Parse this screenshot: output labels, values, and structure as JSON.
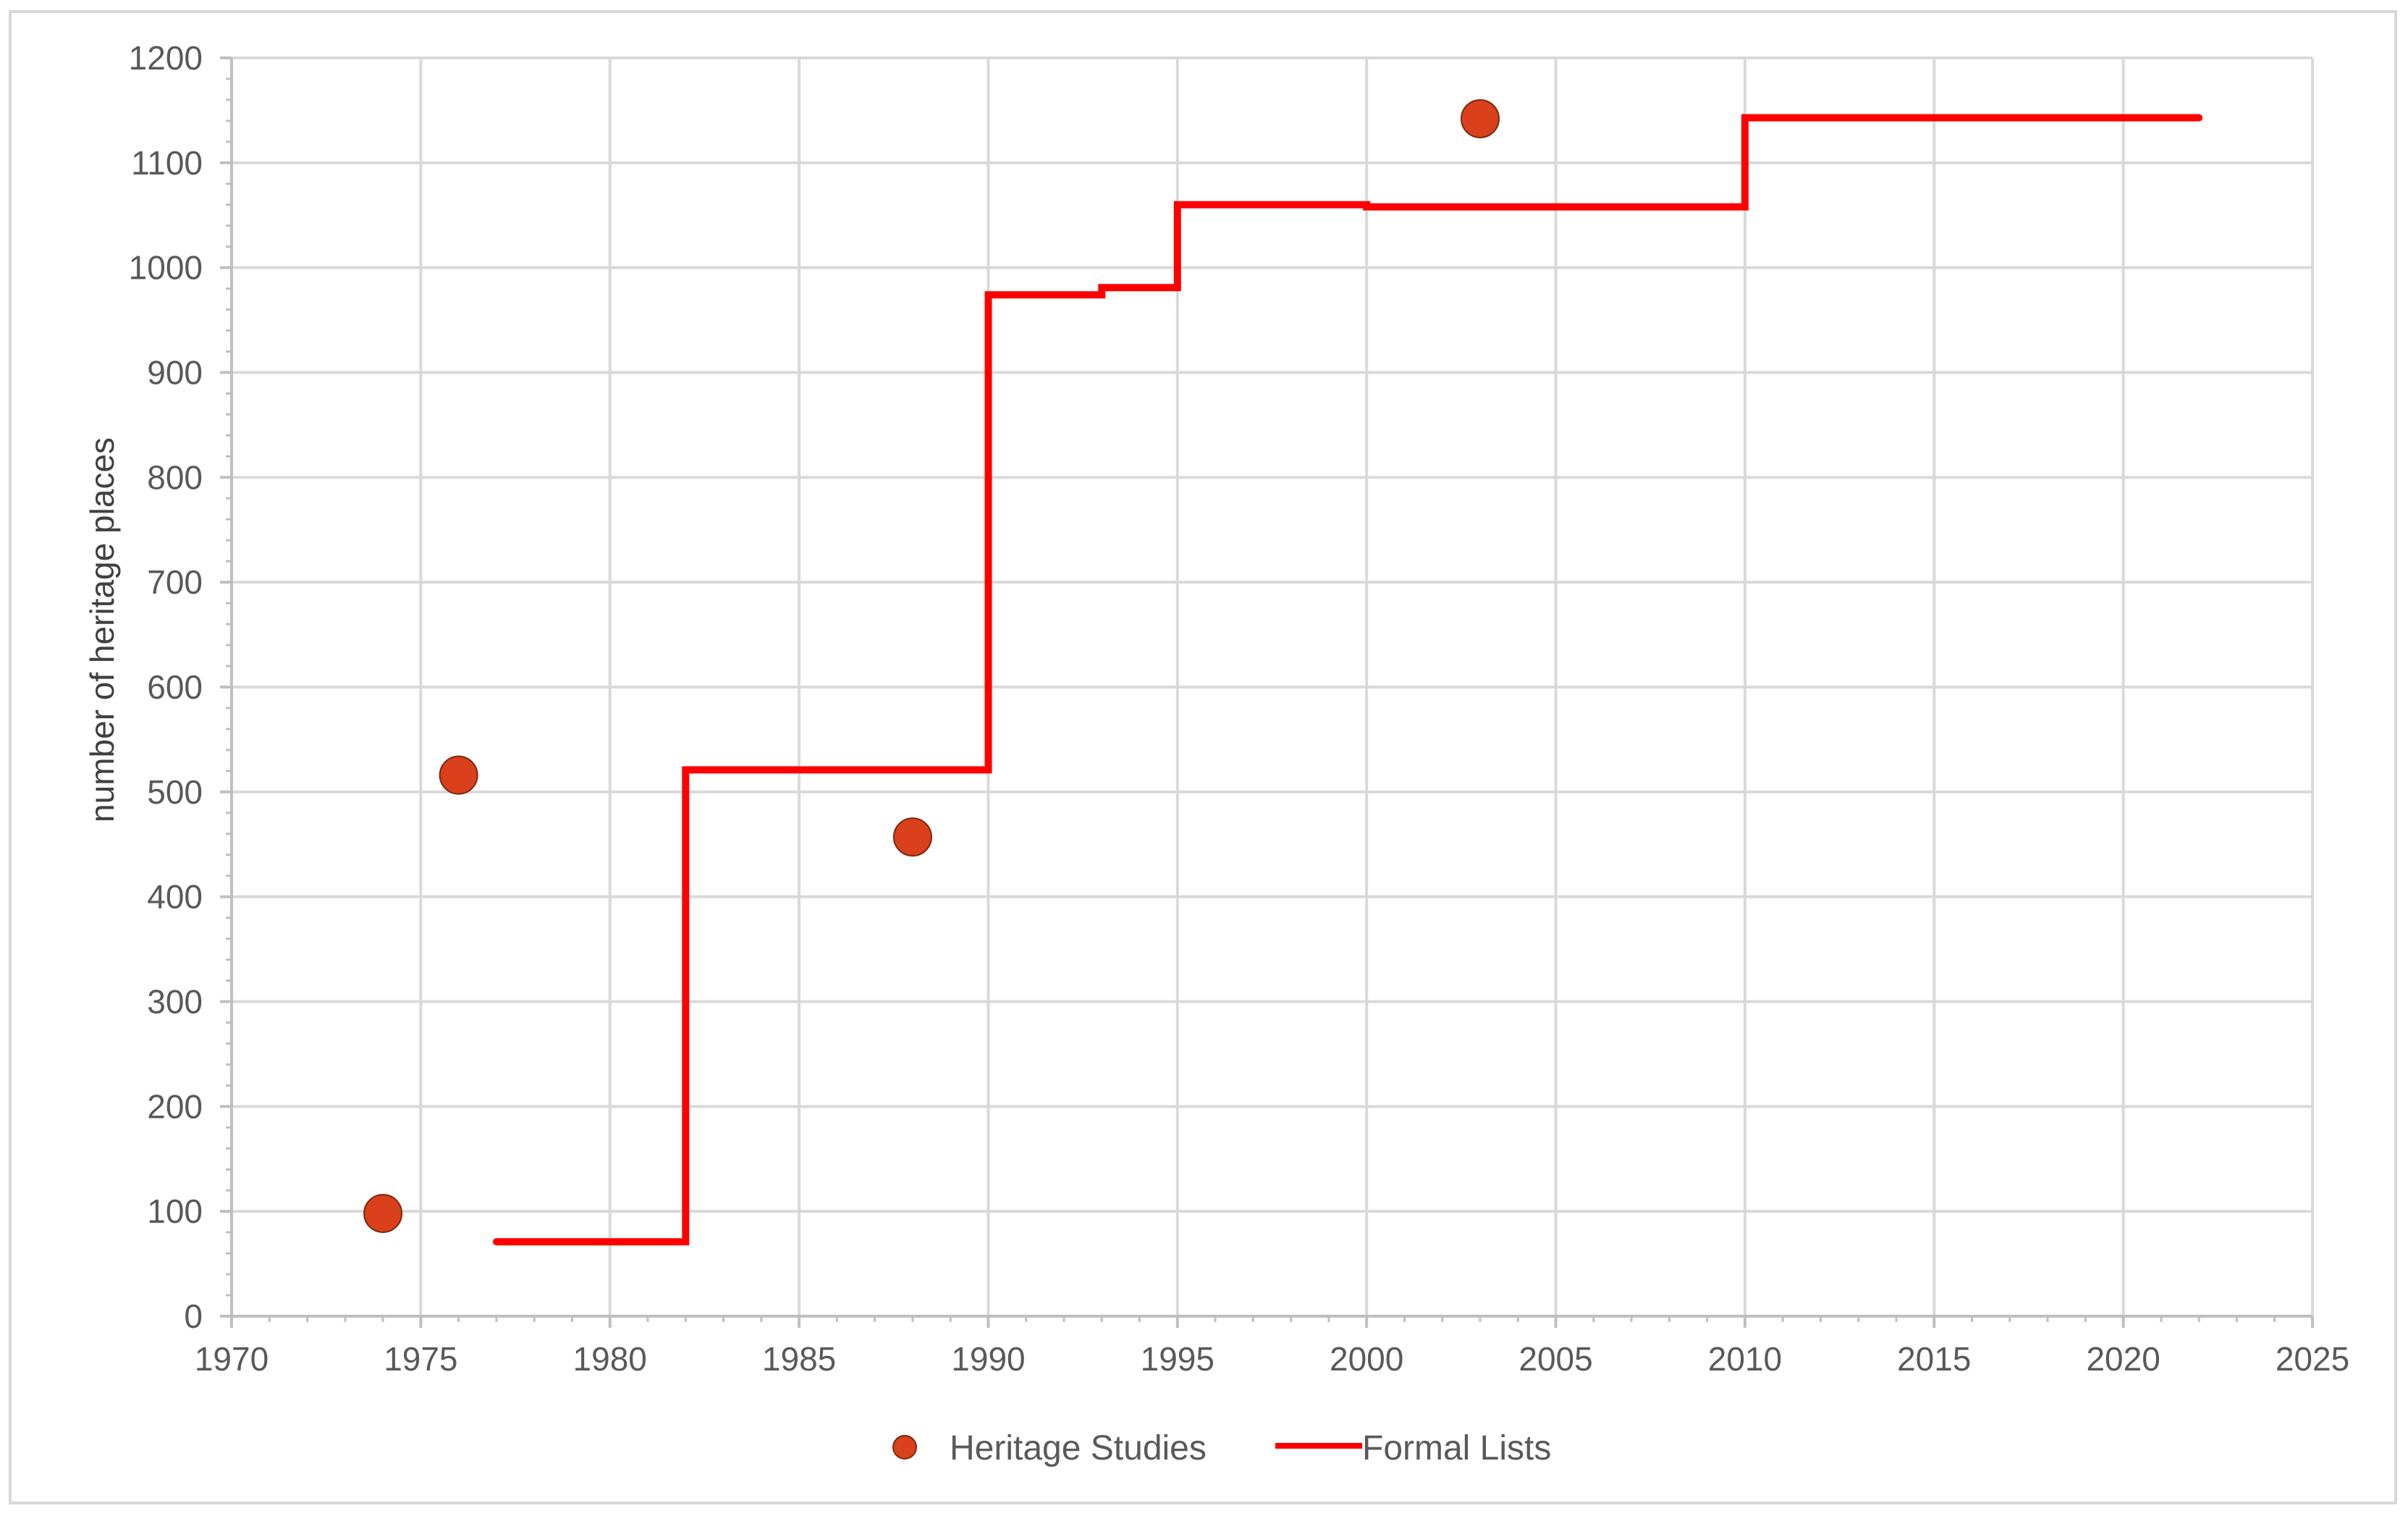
{
  "chart_data": {
    "type": "scatter",
    "title": "",
    "xlabel": "",
    "ylabel": "number of heritage places",
    "xlim": [
      1970,
      2025
    ],
    "ylim": [
      0,
      1200
    ],
    "x_ticks": [
      1970,
      1975,
      1980,
      1985,
      1990,
      1995,
      2000,
      2005,
      2010,
      2015,
      2020,
      2025
    ],
    "y_ticks": [
      0,
      100,
      200,
      300,
      400,
      500,
      600,
      700,
      800,
      900,
      1000,
      1100,
      1200
    ],
    "grid": true,
    "legend_position": "bottom",
    "series": [
      {
        "name": "Heritage Studies",
        "kind": "scatter",
        "color": "#d9401b",
        "points": [
          {
            "x": 1974,
            "y": 98
          },
          {
            "x": 1976,
            "y": 516
          },
          {
            "x": 1988,
            "y": 457
          },
          {
            "x": 2003,
            "y": 1142
          }
        ]
      },
      {
        "name": "Formal Lists",
        "kind": "line",
        "color": "#ff0000",
        "points": [
          {
            "x": 1977,
            "y": 71
          },
          {
            "x": 1982,
            "y": 71
          },
          {
            "x": 1982,
            "y": 521
          },
          {
            "x": 1990,
            "y": 521
          },
          {
            "x": 1990,
            "y": 974
          },
          {
            "x": 1993,
            "y": 974
          },
          {
            "x": 1993,
            "y": 981
          },
          {
            "x": 1995,
            "y": 981
          },
          {
            "x": 1995,
            "y": 1060
          },
          {
            "x": 2000,
            "y": 1060
          },
          {
            "x": 2000,
            "y": 1058
          },
          {
            "x": 2010,
            "y": 1058
          },
          {
            "x": 2010,
            "y": 1143
          },
          {
            "x": 2022,
            "y": 1143
          }
        ]
      }
    ]
  }
}
